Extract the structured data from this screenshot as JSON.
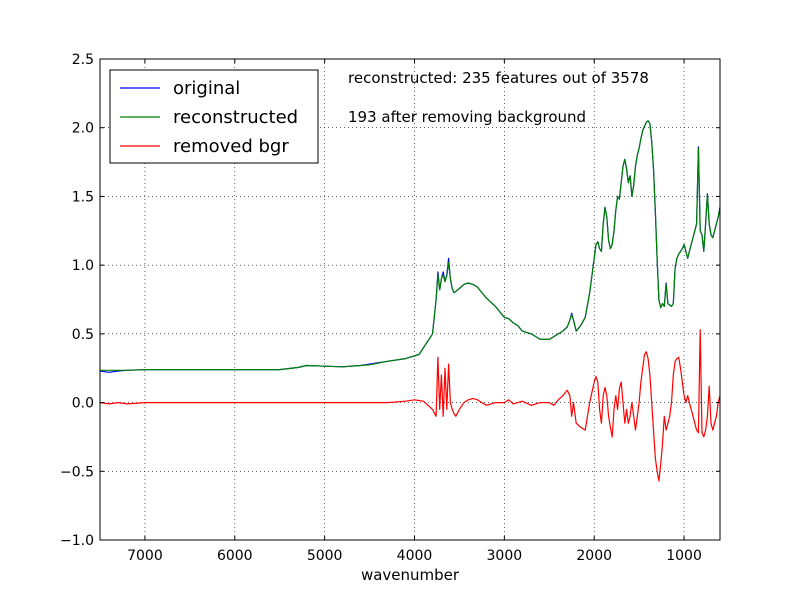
{
  "chart_data": {
    "type": "line",
    "xlabel": "wavenumber",
    "ylabel": "",
    "xlim": [
      7500,
      600
    ],
    "ylim": [
      -1.0,
      2.5
    ],
    "x_reversed": true,
    "grid": true,
    "legend_position": "top-left",
    "xticks": [
      7000,
      6000,
      5000,
      4000,
      3000,
      2000,
      1000
    ],
    "xtick_labels": [
      "7000",
      "6000",
      "5000",
      "4000",
      "3000",
      "2000",
      "1000"
    ],
    "yticks": [
      -1.0,
      -0.5,
      0.0,
      0.5,
      1.0,
      1.5,
      2.0,
      2.5
    ],
    "ytick_labels": [
      "−1.0",
      "−0.5",
      "0.0",
      "0.5",
      "1.0",
      "1.5",
      "2.0",
      "2.5"
    ],
    "annotations": [
      "reconstructed: 235 features out of 3578",
      "193 after removing background"
    ],
    "series": [
      {
        "name": "original",
        "color": "#0000ff",
        "x": [
          7500,
          7400,
          7300,
          7200,
          7000,
          6500,
          6000,
          5500,
          5300,
          5200,
          5000,
          4800,
          4600,
          4500,
          4300,
          4100,
          3950,
          3800,
          3760,
          3740,
          3720,
          3700,
          3680,
          3660,
          3640,
          3620,
          3600,
          3580,
          3560,
          3540,
          3500,
          3450,
          3400,
          3350,
          3300,
          3250,
          3200,
          3100,
          3000,
          2950,
          2900,
          2850,
          2800,
          2700,
          2600,
          2500,
          2450,
          2400,
          2350,
          2300,
          2270,
          2250,
          2230,
          2200,
          2150,
          2100,
          2050,
          2000,
          1980,
          1960,
          1940,
          1920,
          1900,
          1880,
          1860,
          1840,
          1820,
          1800,
          1780,
          1760,
          1740,
          1720,
          1700,
          1680,
          1660,
          1640,
          1620,
          1600,
          1580,
          1560,
          1540,
          1520,
          1500,
          1480,
          1460,
          1440,
          1420,
          1400,
          1380,
          1360,
          1340,
          1320,
          1300,
          1280,
          1260,
          1240,
          1220,
          1200,
          1180,
          1160,
          1140,
          1120,
          1100,
          1080,
          1060,
          1040,
          1020,
          1000,
          980,
          960,
          940,
          920,
          900,
          880,
          860,
          840,
          820,
          800,
          780,
          760,
          740,
          720,
          700,
          680,
          660,
          640,
          620,
          600
        ],
        "y": [
          0.23,
          0.22,
          0.23,
          0.235,
          0.24,
          0.24,
          0.24,
          0.24,
          0.255,
          0.27,
          0.265,
          0.26,
          0.27,
          0.28,
          0.3,
          0.32,
          0.35,
          0.5,
          0.75,
          0.95,
          0.82,
          0.9,
          0.95,
          0.88,
          0.93,
          1.05,
          0.9,
          0.83,
          0.8,
          0.81,
          0.83,
          0.86,
          0.87,
          0.86,
          0.84,
          0.8,
          0.76,
          0.7,
          0.62,
          0.61,
          0.58,
          0.56,
          0.52,
          0.5,
          0.46,
          0.46,
          0.48,
          0.5,
          0.52,
          0.55,
          0.6,
          0.65,
          0.6,
          0.52,
          0.56,
          0.62,
          0.8,
          1.05,
          1.15,
          1.17,
          1.12,
          1.1,
          1.3,
          1.42,
          1.35,
          1.18,
          1.12,
          1.15,
          1.25,
          1.4,
          1.5,
          1.48,
          1.6,
          1.72,
          1.77,
          1.7,
          1.6,
          1.65,
          1.5,
          1.58,
          1.72,
          1.8,
          1.85,
          1.92,
          1.98,
          2.01,
          2.04,
          2.05,
          2.03,
          1.9,
          1.7,
          1.4,
          1.05,
          0.75,
          0.69,
          0.72,
          0.7,
          0.87,
          0.72,
          0.71,
          0.7,
          0.72,
          0.98,
          1.05,
          1.08,
          1.1,
          1.12,
          1.15,
          1.1,
          1.05,
          1.1,
          1.15,
          1.2,
          1.25,
          1.3,
          1.86,
          1.25,
          1.22,
          1.1,
          1.3,
          1.52,
          1.3,
          1.22,
          1.2,
          1.25,
          1.3,
          1.35,
          1.42
        ]
      },
      {
        "name": "reconstructed",
        "color": "#008000",
        "x": [
          7500,
          7400,
          7300,
          7200,
          7000,
          6500,
          6000,
          5500,
          5300,
          5200,
          5000,
          4800,
          4600,
          4500,
          4300,
          4100,
          3950,
          3800,
          3760,
          3740,
          3720,
          3700,
          3680,
          3660,
          3640,
          3620,
          3600,
          3580,
          3560,
          3540,
          3500,
          3450,
          3400,
          3350,
          3300,
          3250,
          3200,
          3100,
          3000,
          2950,
          2900,
          2850,
          2800,
          2700,
          2600,
          2500,
          2450,
          2400,
          2350,
          2300,
          2270,
          2250,
          2230,
          2200,
          2150,
          2100,
          2050,
          2000,
          1980,
          1960,
          1940,
          1920,
          1900,
          1880,
          1860,
          1840,
          1820,
          1800,
          1780,
          1760,
          1740,
          1720,
          1700,
          1680,
          1660,
          1640,
          1620,
          1600,
          1580,
          1560,
          1540,
          1520,
          1500,
          1480,
          1460,
          1440,
          1420,
          1400,
          1380,
          1360,
          1340,
          1320,
          1300,
          1280,
          1260,
          1240,
          1220,
          1200,
          1180,
          1160,
          1140,
          1120,
          1100,
          1080,
          1060,
          1040,
          1020,
          1000,
          980,
          960,
          940,
          920,
          900,
          880,
          860,
          840,
          820,
          800,
          780,
          760,
          740,
          720,
          700,
          680,
          660,
          640,
          620,
          600
        ],
        "y": [
          0.235,
          0.235,
          0.235,
          0.235,
          0.24,
          0.24,
          0.24,
          0.24,
          0.255,
          0.27,
          0.265,
          0.26,
          0.27,
          0.275,
          0.3,
          0.32,
          0.35,
          0.5,
          0.75,
          0.93,
          0.82,
          0.9,
          0.93,
          0.88,
          0.92,
          1.02,
          0.9,
          0.83,
          0.8,
          0.81,
          0.83,
          0.86,
          0.87,
          0.86,
          0.84,
          0.8,
          0.76,
          0.7,
          0.62,
          0.61,
          0.58,
          0.56,
          0.52,
          0.5,
          0.46,
          0.46,
          0.48,
          0.5,
          0.52,
          0.55,
          0.6,
          0.64,
          0.6,
          0.52,
          0.56,
          0.62,
          0.8,
          1.05,
          1.15,
          1.17,
          1.12,
          1.1,
          1.3,
          1.42,
          1.35,
          1.18,
          1.12,
          1.15,
          1.25,
          1.4,
          1.5,
          1.48,
          1.6,
          1.72,
          1.77,
          1.7,
          1.6,
          1.65,
          1.5,
          1.58,
          1.72,
          1.8,
          1.85,
          1.92,
          1.98,
          2.01,
          2.04,
          2.05,
          2.03,
          1.9,
          1.7,
          1.4,
          1.05,
          0.75,
          0.69,
          0.72,
          0.7,
          0.86,
          0.72,
          0.71,
          0.7,
          0.72,
          0.98,
          1.05,
          1.08,
          1.1,
          1.12,
          1.15,
          1.1,
          1.05,
          1.1,
          1.15,
          1.2,
          1.25,
          1.3,
          1.85,
          1.25,
          1.22,
          1.1,
          1.3,
          1.52,
          1.3,
          1.22,
          1.2,
          1.25,
          1.3,
          1.35,
          1.42
        ]
      },
      {
        "name": "removed bgr",
        "color": "#ff0000",
        "x": [
          7500,
          7400,
          7300,
          7200,
          7000,
          6500,
          6000,
          5500,
          5300,
          5200,
          5000,
          4800,
          4600,
          4500,
          4300,
          4100,
          4000,
          3900,
          3800,
          3760,
          3740,
          3720,
          3700,
          3680,
          3660,
          3640,
          3620,
          3600,
          3580,
          3560,
          3540,
          3500,
          3450,
          3400,
          3350,
          3300,
          3250,
          3200,
          3100,
          3000,
          2950,
          2900,
          2850,
          2800,
          2700,
          2600,
          2500,
          2450,
          2400,
          2350,
          2300,
          2270,
          2250,
          2230,
          2200,
          2150,
          2100,
          2050,
          2000,
          1980,
          1960,
          1940,
          1920,
          1900,
          1880,
          1860,
          1840,
          1820,
          1800,
          1780,
          1760,
          1740,
          1720,
          1700,
          1680,
          1660,
          1640,
          1620,
          1600,
          1580,
          1560,
          1540,
          1520,
          1500,
          1480,
          1460,
          1440,
          1420,
          1400,
          1380,
          1360,
          1340,
          1320,
          1300,
          1280,
          1260,
          1240,
          1220,
          1200,
          1180,
          1160,
          1140,
          1120,
          1100,
          1080,
          1060,
          1040,
          1020,
          1000,
          980,
          960,
          940,
          920,
          900,
          880,
          860,
          840,
          820,
          800,
          780,
          760,
          740,
          720,
          700,
          680,
          660,
          640,
          620,
          600
        ],
        "y": [
          0.0,
          -0.01,
          0.0,
          -0.01,
          0.0,
          0.0,
          0.0,
          0.0,
          0.0,
          0.0,
          0.0,
          0.0,
          0.0,
          0.0,
          0.0,
          0.01,
          0.02,
          0.01,
          -0.05,
          -0.1,
          0.33,
          -0.05,
          0.2,
          -0.1,
          0.25,
          -0.05,
          0.28,
          0.0,
          -0.05,
          -0.08,
          -0.1,
          -0.05,
          0.0,
          0.02,
          0.03,
          0.02,
          0.0,
          -0.02,
          0.0,
          0.0,
          0.02,
          -0.01,
          0.0,
          0.01,
          -0.02,
          0.0,
          0.0,
          -0.02,
          0.02,
          0.05,
          0.09,
          0.05,
          -0.1,
          0.0,
          -0.15,
          -0.18,
          -0.2,
          0.0,
          0.15,
          0.19,
          0.15,
          -0.05,
          -0.15,
          0.05,
          0.11,
          0.05,
          -0.1,
          -0.18,
          -0.25,
          -0.05,
          0.05,
          -0.05,
          0.1,
          0.15,
          0.0,
          -0.15,
          -0.05,
          -0.15,
          -0.1,
          0.0,
          -0.1,
          -0.2,
          -0.1,
          0.0,
          0.15,
          0.25,
          0.35,
          0.37,
          0.32,
          0.2,
          0.0,
          -0.2,
          -0.4,
          -0.5,
          -0.57,
          -0.45,
          -0.3,
          -0.1,
          -0.2,
          -0.15,
          -0.1,
          0.0,
          0.2,
          0.3,
          0.32,
          0.33,
          0.25,
          0.15,
          0.05,
          0.0,
          0.05,
          0.0,
          -0.05,
          -0.1,
          -0.15,
          -0.2,
          -0.22,
          0.53,
          -0.22,
          -0.25,
          -0.2,
          -0.1,
          0.12,
          -0.15,
          -0.2,
          -0.15,
          -0.1,
          0.0,
          0.05
        ]
      }
    ]
  }
}
